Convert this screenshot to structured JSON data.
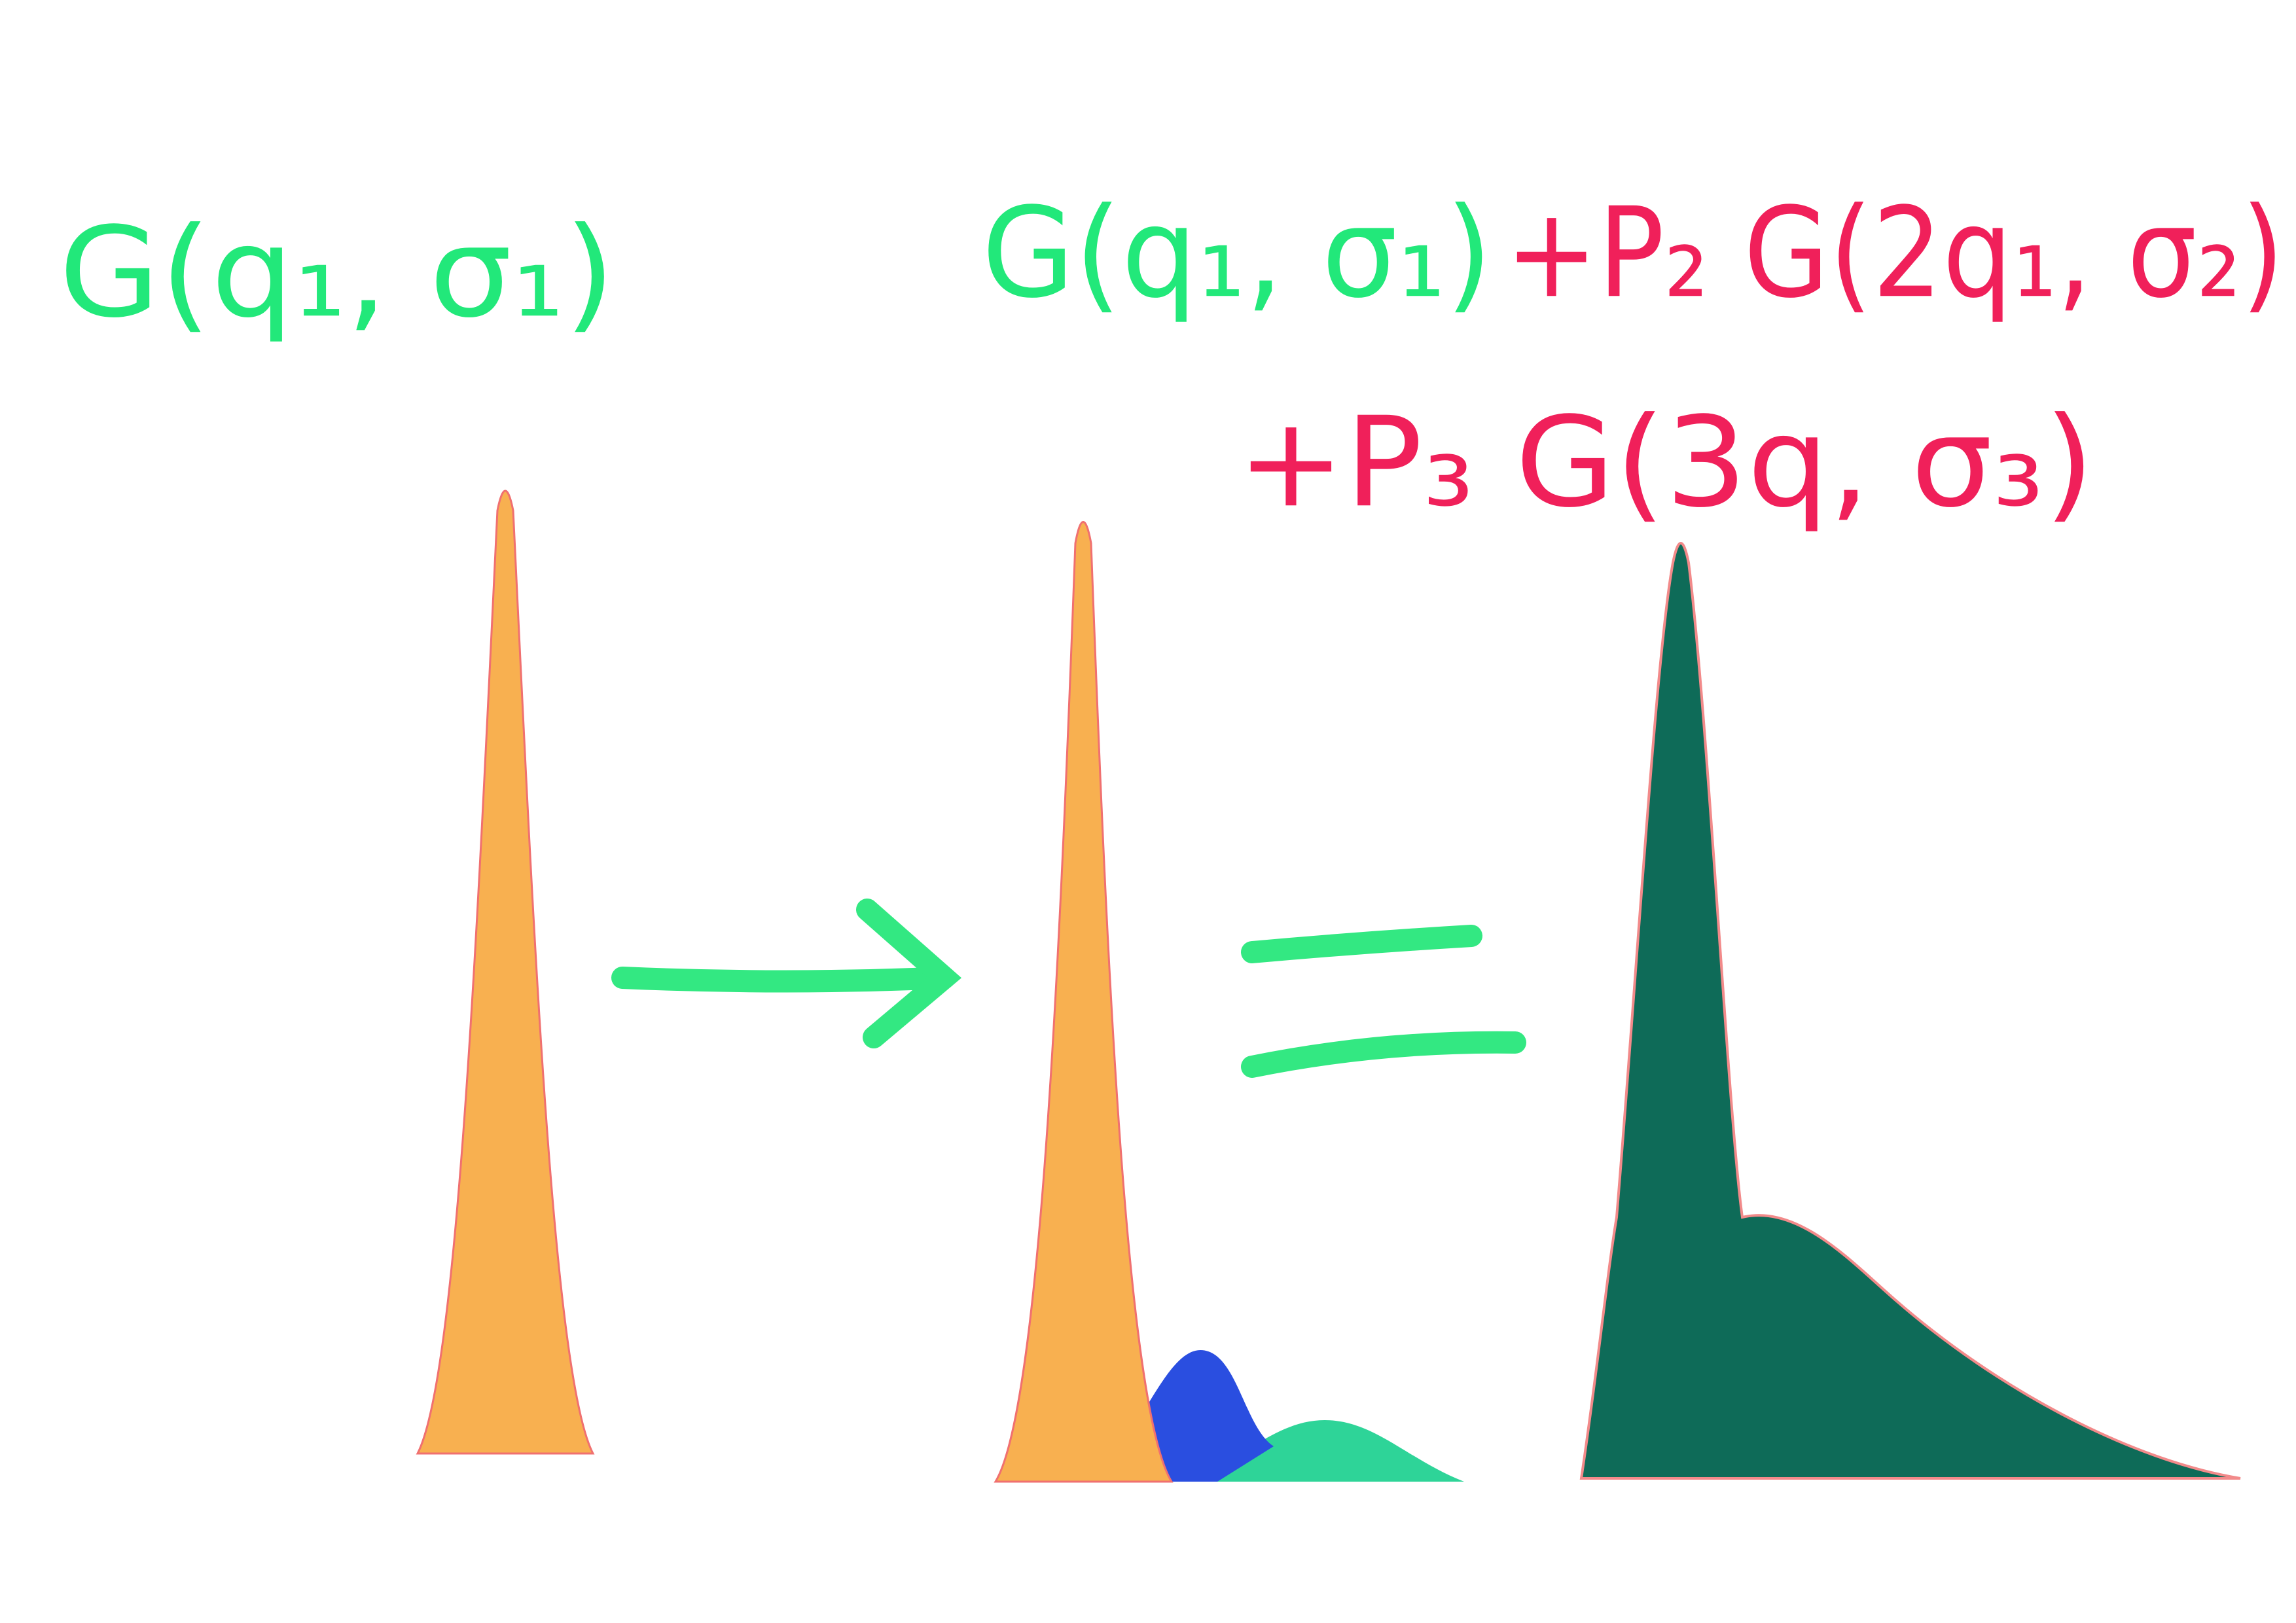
{
  "labels": {
    "left": "G(q₁, σ₁)",
    "right_green": "G(q₁, σ₁)",
    "right_red_1": "+P₂ G(2q₁, σ₂)",
    "right_red_2": "+P₃ G(3q, σ₃)"
  }
}
